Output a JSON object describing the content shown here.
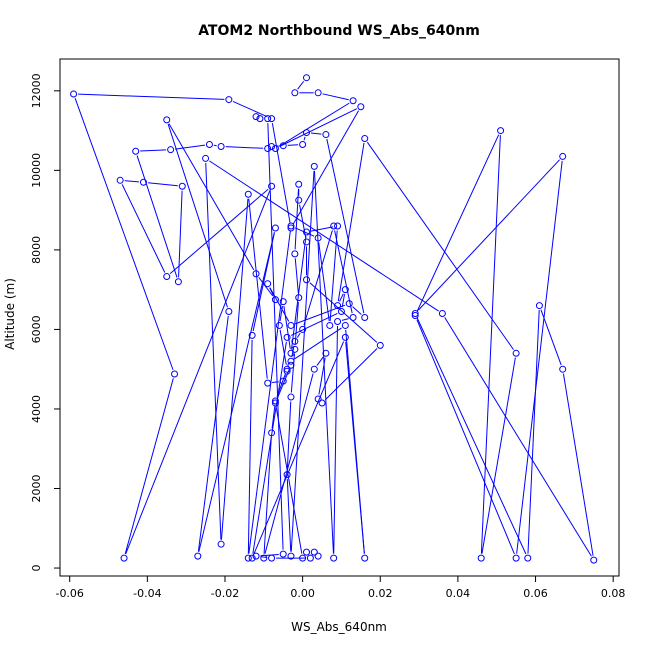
{
  "chart_data": {
    "type": "line",
    "title": "ATOM2 Northbound WS_Abs_640nm",
    "xlabel": "WS_Abs_640nm",
    "ylabel": "Altitude (m)",
    "xlim": [
      -0.0625,
      0.0815
    ],
    "ylim": [
      -200,
      12800
    ],
    "xticks": [
      -0.06,
      -0.04,
      -0.02,
      0.0,
      0.02,
      0.04,
      0.06,
      0.08
    ],
    "xtick_labels": [
      "-0.06",
      "-0.04",
      "-0.02",
      "0.00",
      "0.02",
      "0.04",
      "0.06",
      "0.08"
    ],
    "yticks": [
      0,
      2000,
      4000,
      6000,
      8000,
      10000,
      12000
    ],
    "ytick_labels": [
      "0",
      "2000",
      "4000",
      "6000",
      "8000",
      "10000",
      "12000"
    ],
    "grid": false,
    "legend": "none",
    "series": [
      {
        "color": "#0000ff",
        "markers": "open-circle",
        "points": [
          [
            0.001,
            12330
          ],
          [
            -0.002,
            11950
          ],
          [
            0.004,
            11950
          ],
          [
            0.013,
            11750
          ],
          [
            -0.007,
            10550
          ],
          [
            0.015,
            11600
          ],
          [
            -0.003,
            8550
          ],
          [
            -0.008,
            11300
          ],
          [
            -0.019,
            11780
          ],
          [
            -0.059,
            11920
          ],
          [
            -0.033,
            4880
          ],
          [
            -0.046,
            250
          ],
          [
            -0.008,
            9600
          ],
          [
            -0.035,
            7330
          ],
          [
            -0.047,
            9750
          ],
          [
            -0.041,
            9700
          ],
          [
            -0.031,
            9600
          ],
          [
            -0.032,
            7200
          ],
          [
            -0.043,
            10480
          ],
          [
            -0.034,
            10520
          ],
          [
            -0.024,
            10650
          ],
          [
            -0.021,
            10600
          ],
          [
            -0.009,
            10550
          ],
          [
            -0.008,
            10600
          ],
          [
            -0.005,
            10620
          ],
          [
            0.0,
            10650
          ],
          [
            0.001,
            10950
          ],
          [
            0.006,
            10900
          ],
          [
            0.016,
            6300
          ],
          [
            0.012,
            6650
          ],
          [
            -0.003,
            6100
          ],
          [
            -0.009,
            7150
          ],
          [
            -0.007,
            6750
          ],
          [
            -0.012,
            7400
          ],
          [
            -0.035,
            11270
          ],
          [
            -0.019,
            6450
          ],
          [
            -0.027,
            300
          ],
          [
            -0.007,
            8550
          ],
          [
            -0.013,
            5850
          ],
          [
            -0.014,
            250
          ],
          [
            -0.003,
            8600
          ],
          [
            0.004,
            8300
          ],
          [
            0.007,
            6100
          ],
          [
            0.009,
            8600
          ],
          [
            0.001,
            8450
          ],
          [
            -0.003,
            5400
          ],
          [
            -0.005,
            6700
          ],
          [
            -0.006,
            6100
          ],
          [
            -0.004,
            5000
          ],
          [
            -0.007,
            4200
          ],
          [
            -0.008,
            3400
          ],
          [
            -0.01,
            250
          ],
          [
            0.003,
            5000
          ],
          [
            0.006,
            5400
          ],
          [
            0.004,
            4250
          ],
          [
            0.005,
            4150
          ],
          [
            0.02,
            5600
          ],
          [
            0.001,
            7250
          ],
          [
            0.001,
            8200
          ],
          [
            -0.001,
            9250
          ],
          [
            -0.001,
            9650
          ],
          [
            -0.002,
            7900
          ],
          [
            -0.001,
            6800
          ],
          [
            -0.002,
            5500
          ],
          [
            -0.003,
            4300
          ],
          [
            -0.004,
            2350
          ],
          [
            -0.003,
            300
          ],
          [
            0.003,
            10100
          ],
          [
            0.008,
            250
          ],
          [
            0.009,
            6200
          ],
          [
            0.013,
            6300
          ],
          [
            0.008,
            8600
          ],
          [
            0.0,
            6000
          ],
          [
            -0.002,
            5700
          ],
          [
            -0.003,
            5200
          ],
          [
            0.011,
            6100
          ],
          [
            0.016,
            250
          ],
          [
            0.011,
            5800
          ],
          [
            -0.013,
            250
          ],
          [
            -0.004,
            5800
          ],
          [
            0.01,
            6450
          ],
          [
            0.011,
            7000
          ],
          [
            0.009,
            6600
          ],
          [
            0.016,
            10800
          ],
          [
            0.055,
            5400
          ],
          [
            0.046,
            250
          ],
          [
            0.051,
            11000
          ],
          [
            0.029,
            6350
          ],
          [
            0.055,
            250
          ],
          [
            0.067,
            10350
          ],
          [
            0.029,
            6400
          ],
          [
            0.058,
            250
          ],
          [
            0.061,
            6600
          ],
          [
            0.067,
            5000
          ],
          [
            0.075,
            200
          ],
          [
            0.036,
            6400
          ],
          [
            -0.025,
            10300
          ],
          [
            -0.021,
            600
          ],
          [
            -0.014,
            9400
          ],
          [
            -0.009,
            4650
          ],
          [
            -0.005,
            4700
          ],
          [
            -0.004,
            4950
          ],
          [
            -0.003,
            5100
          ],
          [
            -0.007,
            4150
          ],
          [
            0.0,
            250
          ],
          [
            0.001,
            400
          ],
          [
            0.003,
            400
          ],
          [
            0.004,
            300
          ],
          [
            0.002,
            250
          ],
          [
            -0.008,
            250
          ],
          [
            -0.012,
            300
          ],
          [
            -0.005,
            350
          ],
          [
            -0.009,
            11300
          ],
          [
            -0.011,
            11300
          ],
          [
            -0.012,
            11350
          ]
        ]
      }
    ]
  }
}
